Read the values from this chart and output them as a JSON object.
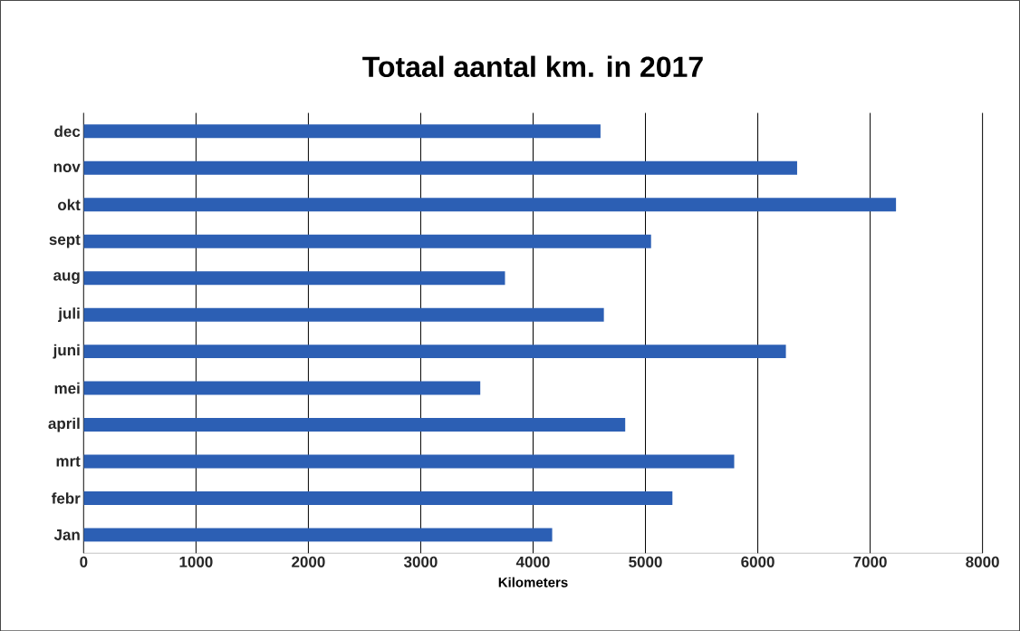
{
  "chart_data": {
    "type": "bar",
    "orientation": "horizontal",
    "title": "Totaal aantal km. in 2017",
    "xlabel": "Kilometers",
    "categories": [
      "dec",
      "nov",
      "okt",
      "sept",
      "aug",
      "juli",
      "juni",
      "mei",
      "april",
      "mrt",
      "febr",
      "Jan"
    ],
    "values": [
      4600,
      6350,
      7230,
      5050,
      3750,
      4630,
      6250,
      3530,
      4820,
      5790,
      5240,
      4170
    ],
    "color": "#2c5fb4",
    "xlim": [
      0,
      8000
    ],
    "xticks": [
      0,
      1000,
      2000,
      3000,
      4000,
      5000,
      6000,
      7000,
      8000
    ],
    "grid": "x"
  }
}
